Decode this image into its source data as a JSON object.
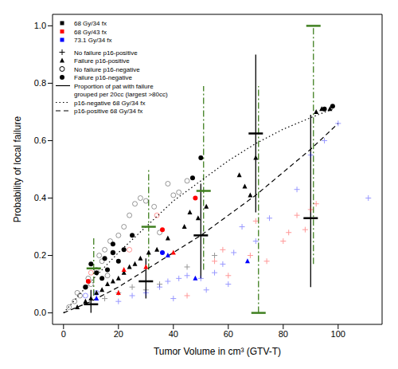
{
  "chart_data": {
    "type": "scatter",
    "x_label": "Tumor Volume in cm³ (GTV-T)",
    "y_label": "Probability of local failure",
    "xlim": [
      -4,
      116
    ],
    "ylim": [
      -0.04,
      1.04
    ],
    "xticks": [
      0,
      20,
      40,
      60,
      80,
      100
    ],
    "yticks": [
      {
        "value": 0,
        "label": "0.0"
      },
      0.2,
      0.4,
      0.6,
      0.8,
      {
        "value": 1,
        "label": "1.0"
      }
    ],
    "grid": false,
    "legend": "top-left",
    "fractionation": [
      {
        "name": "68 Gy/34 fx",
        "color": "#000000",
        "marker": "square"
      },
      {
        "name": "68 Gy/43 fx",
        "color": "#ff0000",
        "marker": "square"
      },
      {
        "name": "73.1 Gy/34 fx",
        "color": "#0000ff",
        "marker": "square"
      }
    ],
    "series": [
      {
        "name": "No failure p16-positive",
        "type": "scatter",
        "marker": "plus",
        "color": "#000000",
        "x": [
          10,
          15,
          20,
          25,
          30,
          35,
          45,
          55,
          20,
          25,
          30,
          35,
          38,
          40,
          42,
          45,
          50,
          52,
          55,
          58,
          60,
          62,
          65,
          70,
          75,
          85,
          90,
          95,
          100,
          111,
          45,
          55,
          58,
          60,
          68,
          70,
          74,
          80,
          82,
          85,
          88,
          90,
          92
        ],
        "values": [
          0.03,
          0.05,
          0.07,
          0.09,
          0.08,
          0.1,
          0.16,
          0.2,
          0.04,
          0.06,
          0.07,
          0.09,
          0.11,
          0.05,
          0.12,
          0.13,
          0.12,
          0.08,
          0.14,
          0.17,
          0.1,
          0.21,
          0.3,
          0.25,
          0.33,
          0.43,
          0.55,
          0.6,
          0.66,
          0.4,
          0.06,
          0.18,
          0.22,
          0.13,
          0.2,
          0.32,
          0.18,
          0.25,
          0.28,
          0.34,
          0.29,
          0.36,
          0.38
        ],
        "colors": [
          "#000000",
          "#000000",
          "#000000",
          "#000000",
          "#000000",
          "#000000",
          "#000000",
          "#000000",
          "#0000ff",
          "#0000ff",
          "#0000ff",
          "#0000ff",
          "#0000ff",
          "#0000ff",
          "#0000ff",
          "#0000ff",
          "#0000ff",
          "#0000ff",
          "#0000ff",
          "#0000ff",
          "#0000ff",
          "#0000ff",
          "#0000ff",
          "#0000ff",
          "#0000ff",
          "#0000ff",
          "#0000ff",
          "#0000ff",
          "#0000ff",
          "#0000ff",
          "#ff0000",
          "#ff0000",
          "#ff0000",
          "#ff0000",
          "#ff0000",
          "#ff0000",
          "#ff0000",
          "#ff0000",
          "#ff0000",
          "#ff0000",
          "#ff0000",
          "#ff0000",
          "#ff0000"
        ]
      },
      {
        "name": "Failure p16-positive",
        "type": "scatter",
        "marker": "triangle",
        "color": "#000000",
        "x": [
          5,
          8,
          10,
          12,
          14,
          16,
          18,
          20,
          22,
          24,
          26,
          28,
          31,
          34,
          38,
          44,
          46,
          49,
          52,
          64,
          66,
          68,
          70,
          92,
          94,
          97,
          20,
          22,
          30,
          40,
          12,
          38,
          48,
          67
        ],
        "values": [
          0.02,
          0.04,
          0.05,
          0.07,
          0.08,
          0.1,
          0.11,
          0.12,
          0.14,
          0.16,
          0.17,
          0.19,
          0.21,
          0.22,
          0.26,
          0.3,
          0.35,
          0.33,
          0.37,
          0.48,
          0.44,
          0.41,
          0.54,
          0.7,
          0.71,
          0.71,
          0.07,
          0.15,
          0.16,
          0.21,
          0.05,
          0.2,
          0.12,
          0.18
        ],
        "colors": [
          "#000000",
          "#000000",
          "#000000",
          "#000000",
          "#000000",
          "#000000",
          "#000000",
          "#000000",
          "#000000",
          "#000000",
          "#000000",
          "#000000",
          "#000000",
          "#000000",
          "#000000",
          "#000000",
          "#000000",
          "#000000",
          "#000000",
          "#000000",
          "#000000",
          "#000000",
          "#000000",
          "#000000",
          "#000000",
          "#000000",
          "#ff0000",
          "#ff0000",
          "#ff0000",
          "#ff0000",
          "#0000ff",
          "#0000ff",
          "#0000ff",
          "#0000ff"
        ]
      },
      {
        "name": "No failure p16-negative",
        "type": "scatter",
        "marker": "open_circle",
        "color": "#000000",
        "x": [
          2,
          4,
          5,
          6,
          8,
          9,
          10,
          12,
          13,
          14,
          15,
          16,
          17,
          18,
          20,
          22,
          24,
          26,
          28,
          30,
          33,
          35,
          38,
          40,
          42,
          45,
          10,
          24,
          34,
          8,
          12
        ],
        "values": [
          0.02,
          0.04,
          0.07,
          0.06,
          0.09,
          0.12,
          0.1,
          0.15,
          0.2,
          0.18,
          0.22,
          0.13,
          0.25,
          0.21,
          0.27,
          0.3,
          0.34,
          0.38,
          0.4,
          0.39,
          0.37,
          0.28,
          0.45,
          0.41,
          0.42,
          0.46,
          0.14,
          0.22,
          0.34,
          0.06,
          0.07
        ],
        "colors": [
          "#000000",
          "#000000",
          "#000000",
          "#000000",
          "#000000",
          "#000000",
          "#000000",
          "#000000",
          "#000000",
          "#000000",
          "#000000",
          "#000000",
          "#000000",
          "#000000",
          "#000000",
          "#000000",
          "#000000",
          "#000000",
          "#000000",
          "#000000",
          "#000000",
          "#000000",
          "#000000",
          "#000000",
          "#000000",
          "#000000",
          "#ff0000",
          "#ff0000",
          "#ff0000",
          "#0000ff",
          "#0000ff"
        ]
      },
      {
        "name": "Failure p16-negative",
        "type": "scatter",
        "marker": "circle",
        "color": "#000000",
        "x": [
          8,
          10,
          12,
          14,
          15,
          16,
          18,
          18,
          20,
          22,
          25,
          47,
          50,
          95,
          98,
          9,
          36,
          48,
          36
        ],
        "values": [
          0.09,
          0.17,
          0.14,
          0.12,
          0.19,
          0.15,
          0.21,
          0.24,
          0.18,
          0.22,
          0.27,
          0.47,
          0.54,
          0.71,
          0.72,
          0.11,
          0.29,
          0.4,
          0.21
        ],
        "colors": [
          "#000000",
          "#000000",
          "#000000",
          "#000000",
          "#000000",
          "#000000",
          "#000000",
          "#000000",
          "#000000",
          "#000000",
          "#000000",
          "#000000",
          "#000000",
          "#000000",
          "#000000",
          "#ff0000",
          "#ff0000",
          "#ff0000",
          "#0000ff"
        ]
      },
      {
        "name": "Proportion of pat with failure\ngrouped per 20cc (largest >80cc)",
        "type": "errorbar",
        "line_style": "solid",
        "color": "#000000",
        "x": [
          10,
          30,
          50,
          70,
          90
        ],
        "values": [
          0.03,
          0.11,
          0.27,
          0.625,
          0.33
        ],
        "lower": [
          0.0,
          0.05,
          0.12,
          0.35,
          0.09
        ],
        "upper": [
          0.08,
          0.19,
          0.45,
          0.9,
          0.69
        ]
      },
      {
        "name": "p16-negative 68 Gy/34 fx",
        "type": "line",
        "line_style": "dotted",
        "color": "#000000",
        "x": [
          0,
          10,
          20,
          30,
          40,
          50,
          60,
          70,
          80,
          90,
          98
        ],
        "values": [
          0,
          0.11,
          0.21,
          0.3,
          0.39,
          0.46,
          0.53,
          0.59,
          0.64,
          0.68,
          0.71
        ]
      },
      {
        "name": "p16-positive 68 Gy/34 fx",
        "type": "line",
        "line_style": "dashed",
        "color": "#000000",
        "x": [
          0,
          10,
          20,
          30,
          40,
          50,
          60,
          70,
          80,
          90,
          100
        ],
        "values": [
          0,
          0.04,
          0.09,
          0.15,
          0.21,
          0.27,
          0.34,
          0.41,
          0.49,
          0.57,
          0.66
        ]
      },
      {
        "type": "errorbar",
        "line_style": "dashdot",
        "color": "#3f7f1f",
        "x": [
          11,
          31,
          51,
          71,
          91
        ],
        "values": [
          0.155,
          0.3,
          0.425,
          0.0,
          1.0
        ],
        "lower": [
          0.06,
          0.15,
          0.15,
          0.0,
          0.17
        ],
        "upper": [
          0.26,
          0.5,
          0.79,
          0.79,
          1.0
        ]
      }
    ]
  }
}
